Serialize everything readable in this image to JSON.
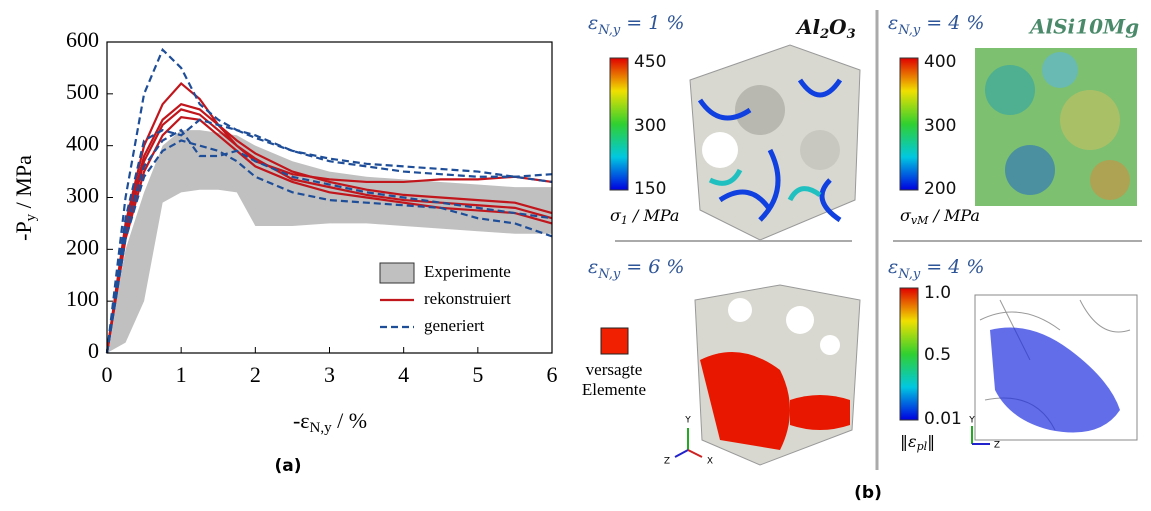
{
  "chart_data": {
    "type": "line",
    "panel_label": "(a)",
    "xlabel": {
      "main": "-ε",
      "sub": "N,y",
      "rest": " / %"
    },
    "ylabel": {
      "main": "-P",
      "sub": "y",
      "rest": " / MPa"
    },
    "xlim": [
      0,
      6
    ],
    "ylim": [
      0,
      600
    ],
    "xticks": [
      0,
      1,
      2,
      3,
      4,
      5,
      6
    ],
    "yticks": [
      0,
      100,
      200,
      300,
      400,
      500,
      600
    ],
    "x": [
      0,
      0.25,
      0.5,
      0.75,
      1,
      1.25,
      1.5,
      1.75,
      2,
      2.5,
      3,
      3.5,
      4,
      4.5,
      5,
      5.5,
      6
    ],
    "series": [
      {
        "name": "Experimente",
        "color": "#c0c0c0",
        "style": "band",
        "values": [
          0,
          200,
          310,
          400,
          430,
          430,
          425,
          420,
          400,
          370,
          350,
          340,
          335,
          330,
          325,
          320,
          320
        ],
        "lower": [
          0,
          20,
          100,
          290,
          310,
          315,
          315,
          310,
          245,
          245,
          250,
          250,
          245,
          240,
          235,
          230,
          230
        ]
      },
      {
        "name": "rekonstruiert",
        "color": "#c0161c",
        "style": "solid",
        "values": [
          0,
          250,
          400,
          480,
          520,
          490,
          440,
          400,
          370,
          345,
          335,
          330,
          330,
          335,
          335,
          340,
          330
        ]
      },
      {
        "color": "#c0161c",
        "style": "solid",
        "values": [
          0,
          240,
          380,
          450,
          480,
          470,
          440,
          410,
          385,
          350,
          330,
          315,
          305,
          300,
          295,
          290,
          270
        ]
      },
      {
        "color": "#c0161c",
        "style": "solid",
        "values": [
          0,
          230,
          370,
          440,
          470,
          460,
          430,
          400,
          375,
          335,
          320,
          305,
          295,
          290,
          285,
          280,
          260
        ]
      },
      {
        "color": "#c0161c",
        "style": "solid",
        "values": [
          0,
          220,
          350,
          420,
          455,
          450,
          420,
          390,
          360,
          330,
          310,
          300,
          290,
          280,
          275,
          270,
          250
        ]
      },
      {
        "name": "generiert",
        "color": "#1f4e99",
        "style": "dashed",
        "values": [
          0,
          300,
          500,
          585,
          550,
          480,
          450,
          430,
          420,
          390,
          370,
          360,
          350,
          345,
          340,
          340,
          345
        ]
      },
      {
        "color": "#1f4e99",
        "style": "dashed",
        "values": [
          0,
          260,
          410,
          430,
          420,
          450,
          440,
          430,
          415,
          390,
          375,
          365,
          360,
          355,
          350,
          340,
          330
        ]
      },
      {
        "color": "#1f4e99",
        "style": "dashed",
        "values": [
          0,
          240,
          360,
          410,
          430,
          380,
          380,
          390,
          370,
          340,
          325,
          310,
          300,
          290,
          280,
          270,
          260
        ]
      },
      {
        "color": "#1f4e99",
        "style": "dashed",
        "values": [
          0,
          220,
          340,
          390,
          410,
          400,
          390,
          370,
          340,
          310,
          295,
          290,
          285,
          280,
          260,
          250,
          225
        ]
      }
    ],
    "legend": "lower right"
  },
  "panel_b": {
    "panel_label": "(b)",
    "top_left": {
      "strain": {
        "main": "ε",
        "sub": "N,y",
        "rest": " = 1 %"
      },
      "material": [
        "Al",
        "2",
        "O",
        "3"
      ],
      "colorbar": [
        "450",
        "300",
        "150"
      ],
      "cb_label": {
        "main": "σ",
        "sub": "1",
        "rest": " / MPa"
      }
    },
    "top_right": {
      "strain": {
        "main": "ε",
        "sub": "N,y",
        "rest": " = 4 %"
      },
      "material": "AlSi10Mg",
      "colorbar": [
        "400",
        "300",
        "200"
      ],
      "cb_label": {
        "main": "σ",
        "sub": "vM",
        "rest": " / MPa"
      }
    },
    "bottom_left": {
      "strain": {
        "main": "ε",
        "sub": "N,y",
        "rest": " = 6 %"
      },
      "legend": [
        "versagte",
        "Elemente"
      ],
      "axes": [
        "Y",
        "Z",
        "X"
      ]
    },
    "bottom_right": {
      "strain": {
        "main": "ε",
        "sub": "N,y",
        "rest": " = 4 %"
      },
      "colorbar": [
        "1.0",
        "0.5",
        "0.01"
      ],
      "cb_label": {
        "main": "‖ε",
        "sub": "pl",
        "rest": "‖"
      },
      "axes": [
        "Y",
        "Z"
      ]
    }
  }
}
